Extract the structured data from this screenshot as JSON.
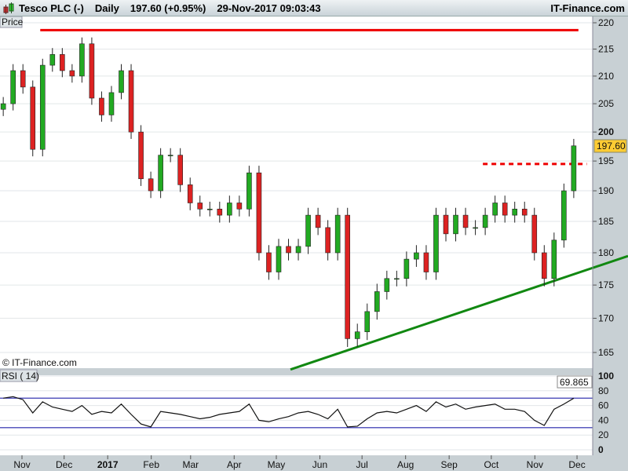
{
  "header": {
    "symbol": "Tesco PLC (-)",
    "period": "Daily",
    "price": "197.60 (+0.95%)",
    "datetime": "29-Nov-2017 09:03:43",
    "brand": "IT-Finance.com",
    "icon": "candlestick-icon"
  },
  "price_panel": {
    "label": "Price",
    "watermark": "© IT-Finance.com",
    "last_label": "197.60"
  },
  "rsi_panel": {
    "label": "RSI ( 14)",
    "last_label": "69.865"
  },
  "colors": {
    "up": "#22aa22",
    "down": "#dd2222",
    "resistance": "#ee0000",
    "support": "#118811",
    "rsi_bands": "#2222aa",
    "last_price_bg": "#ffcc33"
  },
  "chart_data": [
    {
      "type": "candlestick",
      "title": "Tesco PLC (-)",
      "scale": "log",
      "ylim": [
        163,
        221
      ],
      "yticks": [
        165,
        170,
        175,
        180,
        185,
        190,
        195,
        200,
        205,
        210,
        215,
        220
      ],
      "grid": true,
      "xticks": [
        "Nov",
        "Dec",
        "2017",
        "Feb",
        "Mar",
        "Apr",
        "May",
        "Jun",
        "Jul",
        "Aug",
        "Sep",
        "Oct",
        "Nov",
        "Dec"
      ],
      "x": [
        "2016-10-17",
        "2016-10-24",
        "2016-10-31",
        "2016-11-07",
        "2016-11-14",
        "2016-11-21",
        "2016-11-28",
        "2016-12-05",
        "2016-12-12",
        "2016-12-19",
        "2016-12-26",
        "2017-01-02",
        "2017-01-09",
        "2017-01-16",
        "2017-01-23",
        "2017-01-30",
        "2017-02-06",
        "2017-02-13",
        "2017-02-20",
        "2017-02-27",
        "2017-03-06",
        "2017-03-13",
        "2017-03-20",
        "2017-03-27",
        "2017-04-03",
        "2017-04-10",
        "2017-04-17",
        "2017-04-24",
        "2017-05-01",
        "2017-05-08",
        "2017-05-15",
        "2017-05-22",
        "2017-05-29",
        "2017-06-05",
        "2017-06-12",
        "2017-06-19",
        "2017-06-26",
        "2017-07-03",
        "2017-07-10",
        "2017-07-17",
        "2017-07-24",
        "2017-07-31",
        "2017-08-07",
        "2017-08-14",
        "2017-08-21",
        "2017-08-28",
        "2017-09-04",
        "2017-09-11",
        "2017-09-18",
        "2017-09-25",
        "2017-10-02",
        "2017-10-09",
        "2017-10-16",
        "2017-10-23",
        "2017-10-30",
        "2017-11-06",
        "2017-11-13",
        "2017-11-20",
        "2017-11-27"
      ],
      "close": [
        205,
        211,
        208,
        197,
        212,
        214,
        211,
        210,
        216,
        206,
        203,
        207,
        211,
        200,
        192,
        190,
        196,
        196,
        191,
        188,
        187,
        187,
        186,
        188,
        187,
        193,
        180,
        177,
        181,
        180,
        181,
        186,
        184,
        180,
        186,
        167,
        168,
        171,
        174,
        176,
        176,
        179,
        180,
        177,
        186,
        183,
        186,
        184,
        184,
        186,
        188,
        186,
        187,
        186,
        180,
        176,
        182,
        190,
        197.6
      ],
      "lines": [
        {
          "kind": "resistance",
          "style": "solid",
          "from": [
            "2016-11-14",
            218.6
          ],
          "to": [
            "2017-12-02",
            218.6
          ]
        },
        {
          "kind": "support",
          "style": "solid",
          "from": [
            "2017-06-19",
            165.2
          ],
          "to": [
            "2017-11-10",
            175.3
          ]
        },
        {
          "kind": "resistance",
          "style": "dashed",
          "from": [
            "2017-09-25",
            194.5
          ],
          "to": [
            "2017-12-08",
            194.5
          ]
        }
      ]
    },
    {
      "type": "line",
      "title": "RSI ( 14)",
      "ylim": [
        0,
        100
      ],
      "yticks": [
        0,
        20,
        40,
        60,
        80,
        100
      ],
      "bands": [
        30,
        70
      ],
      "values": [
        70,
        72,
        68,
        50,
        65,
        58,
        55,
        52,
        60,
        48,
        52,
        50,
        62,
        48,
        35,
        31,
        52,
        50,
        48,
        45,
        42,
        44,
        48,
        50,
        52,
        62,
        40,
        38,
        42,
        45,
        50,
        52,
        48,
        42,
        55,
        31,
        32,
        42,
        50,
        52,
        50,
        55,
        60,
        52,
        65,
        58,
        62,
        55,
        58,
        60,
        62,
        55,
        55,
        52,
        40,
        33,
        55,
        62,
        69.865
      ]
    }
  ]
}
